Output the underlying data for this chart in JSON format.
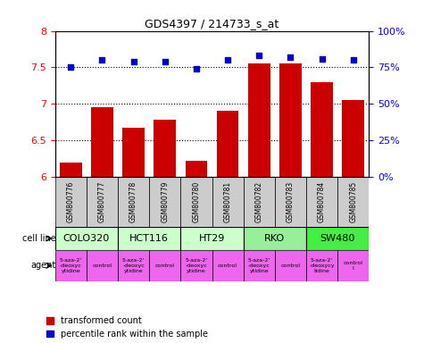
{
  "title": "GDS4397 / 214733_s_at",
  "samples": [
    "GSM800776",
    "GSM800777",
    "GSM800778",
    "GSM800779",
    "GSM800780",
    "GSM800781",
    "GSM800782",
    "GSM800783",
    "GSM800784",
    "GSM800785"
  ],
  "bar_values": [
    6.2,
    6.95,
    6.67,
    6.78,
    6.22,
    6.9,
    7.55,
    7.55,
    7.3,
    7.05
  ],
  "dot_values": [
    75,
    80,
    79,
    79,
    74,
    80,
    83,
    82,
    81,
    80
  ],
  "bar_color": "#cc0000",
  "dot_color": "#0000cc",
  "ylim_left": [
    6.0,
    8.0
  ],
  "ylim_right": [
    0,
    100
  ],
  "yticks_left": [
    6.0,
    6.5,
    7.0,
    7.5,
    8.0
  ],
  "ytick_labels_left": [
    "6",
    "6.5",
    "7",
    "7.5",
    "8"
  ],
  "yticks_right": [
    0,
    25,
    50,
    75,
    100
  ],
  "ytick_labels_right": [
    "0%",
    "25%",
    "50%",
    "75%",
    "100%"
  ],
  "cell_lines": [
    {
      "name": "COLO320",
      "start": 0,
      "end": 2,
      "color": "#ccffcc"
    },
    {
      "name": "HCT116",
      "start": 2,
      "end": 4,
      "color": "#ccffcc"
    },
    {
      "name": "HT29",
      "start": 4,
      "end": 6,
      "color": "#ccffcc"
    },
    {
      "name": "RKO",
      "start": 6,
      "end": 8,
      "color": "#99ee99"
    },
    {
      "name": "SW480",
      "start": 8,
      "end": 10,
      "color": "#44ee44"
    }
  ],
  "agents": [
    {
      "name": "5-aza-2'\n-deoxyc\nytidine",
      "start": 0,
      "end": 1,
      "color": "#ee66ee"
    },
    {
      "name": "control",
      "start": 1,
      "end": 2,
      "color": "#ee66ee"
    },
    {
      "name": "5-aza-2'\n-deoxyc\nytidine",
      "start": 2,
      "end": 3,
      "color": "#ee66ee"
    },
    {
      "name": "control",
      "start": 3,
      "end": 4,
      "color": "#ee66ee"
    },
    {
      "name": "5-aza-2'\n-deoxyc\nytidine",
      "start": 4,
      "end": 5,
      "color": "#ee66ee"
    },
    {
      "name": "control",
      "start": 5,
      "end": 6,
      "color": "#ee66ee"
    },
    {
      "name": "5-aza-2'\n-deoxyc\nytidine",
      "start": 6,
      "end": 7,
      "color": "#ee66ee"
    },
    {
      "name": "control",
      "start": 7,
      "end": 8,
      "color": "#ee66ee"
    },
    {
      "name": "5-aza-2'\n-deoxycy\ntidine",
      "start": 8,
      "end": 9,
      "color": "#ee66ee"
    },
    {
      "name": "control\nl",
      "start": 9,
      "end": 10,
      "color": "#ee66ee"
    }
  ],
  "legend_red": "transformed count",
  "legend_blue": "percentile rank within the sample",
  "cell_line_label": "cell line",
  "agent_label": "agent",
  "sample_bg_color": "#cccccc",
  "grid_color": "#000000"
}
